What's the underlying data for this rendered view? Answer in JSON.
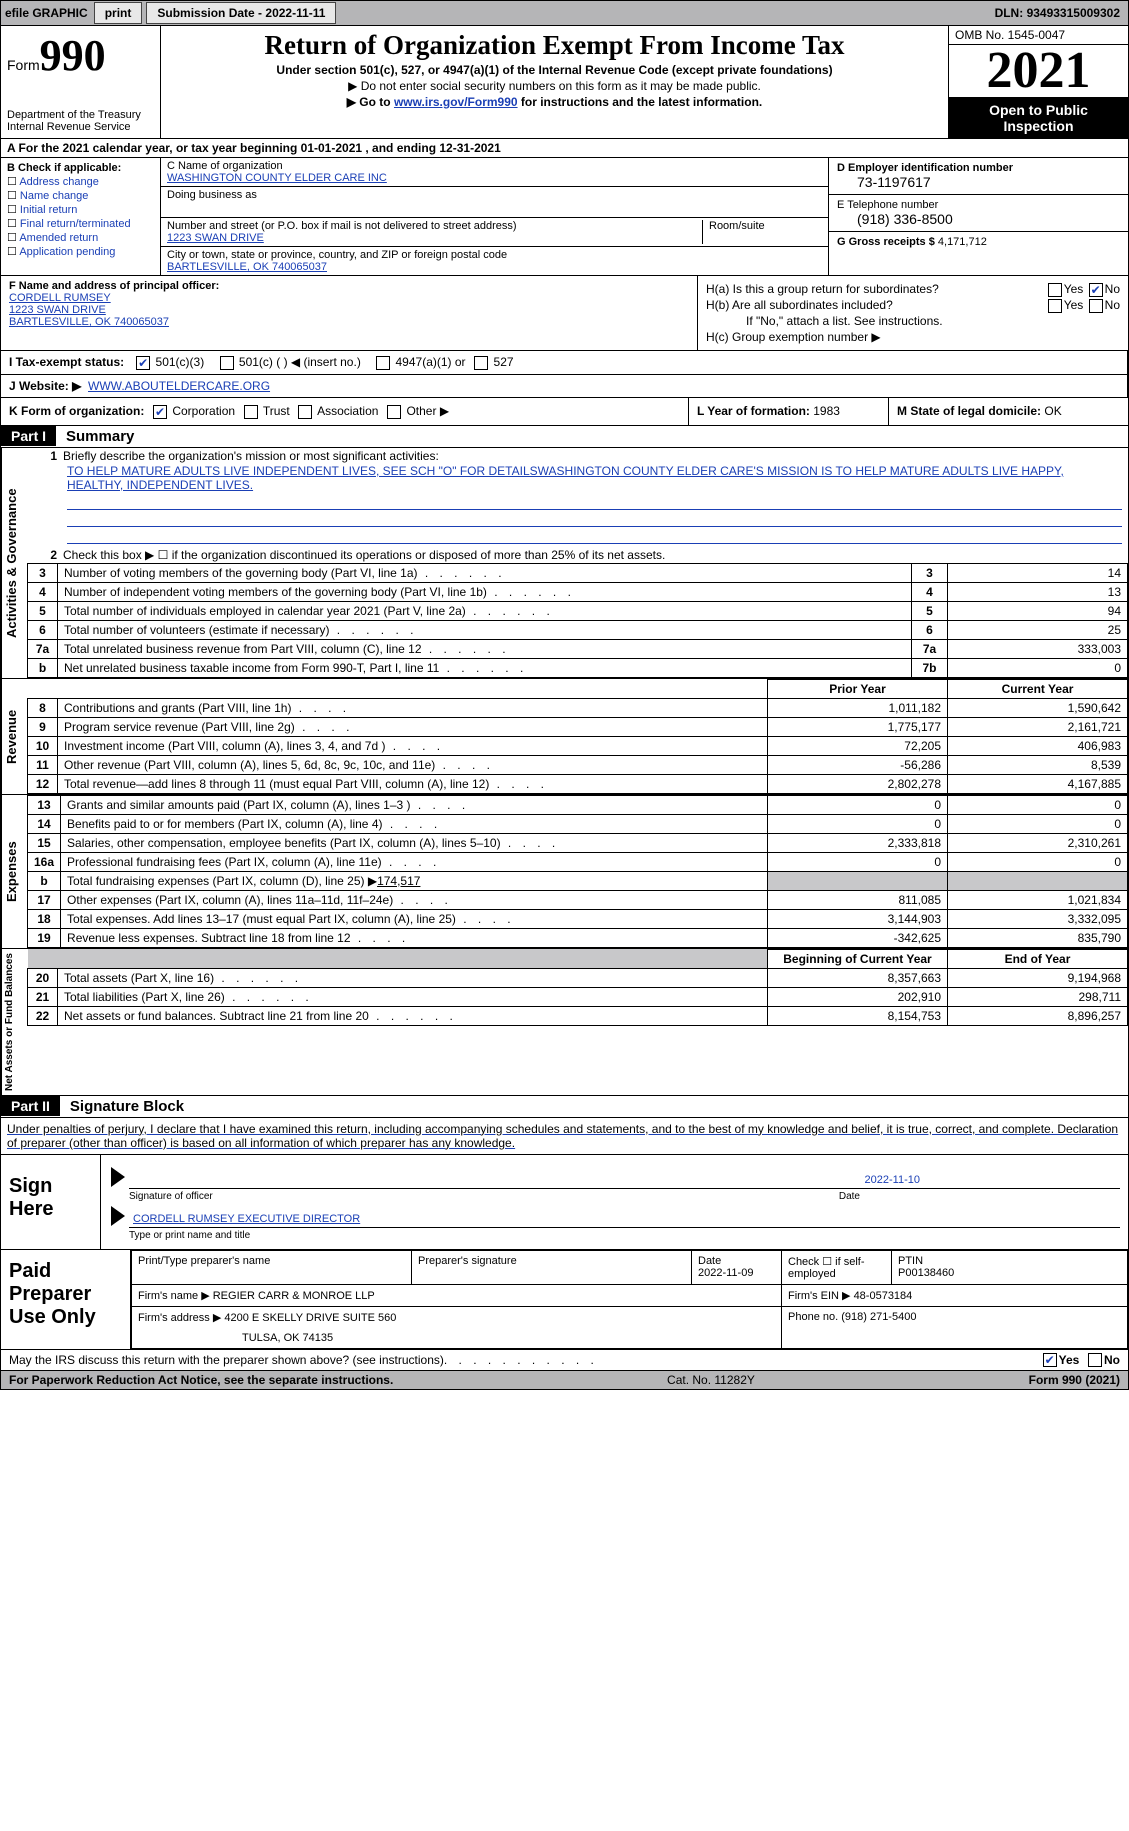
{
  "topbar": {
    "efile": "efile GRAPHIC",
    "print": "print",
    "sub_label": "Submission Date - ",
    "sub_date": "2022-11-11",
    "dln_label": "DLN: ",
    "dln": "93493315009302"
  },
  "header": {
    "form_word": "Form",
    "form_num": "990",
    "dept": "Department of the Treasury",
    "irs": "Internal Revenue Service",
    "title": "Return of Organization Exempt From Income Tax",
    "sub1": "Under section 501(c), 527, or 4947(a)(1) of the Internal Revenue Code (except private foundations)",
    "sub2": "▶ Do not enter social security numbers on this form as it may be made public.",
    "sub3_pre": "▶ Go to ",
    "sub3_link": "www.irs.gov/Form990",
    "sub3_post": " for instructions and the latest information.",
    "omb": "OMB No. 1545-0047",
    "year": "2021",
    "otp": "Open to Public Inspection"
  },
  "row_a": "A For the 2021 calendar year, or tax year beginning 01-01-2021    , and ending 12-31-2021",
  "section_b": {
    "label": "B Check if applicable:",
    "items": [
      "Address change",
      "Name change",
      "Initial return",
      "Final return/terminated",
      "Amended return",
      "Application pending"
    ]
  },
  "section_c": {
    "name_label": "C Name of organization",
    "name": "WASHINGTON COUNTY ELDER CARE INC",
    "dba_label": "Doing business as",
    "addr_label": "Number and street (or P.O. box if mail is not delivered to street address)",
    "room_label": "Room/suite",
    "addr": "1223 SWAN DRIVE",
    "city_label": "City or town, state or province, country, and ZIP or foreign postal code",
    "city": "BARTLESVILLE, OK  740065037"
  },
  "section_d": {
    "ein_label": "D Employer identification number",
    "ein": "73-1197617",
    "phone_label": "E Telephone number",
    "phone": "(918) 336-8500",
    "gross_label": "G Gross receipts $ ",
    "gross": "4,171,712"
  },
  "section_f": {
    "label": "F  Name and address of principal officer:",
    "name": "CORDELL RUMSEY",
    "addr1": "1223 SWAN DRIVE",
    "addr2": "BARTLESVILLE, OK  740065037"
  },
  "section_h": {
    "ha": "H(a)  Is this a group return for subordinates?",
    "hb": "H(b)  Are all subordinates included?",
    "hb_note": "If \"No,\" attach a list. See instructions.",
    "hc": "H(c)  Group exemption number ▶",
    "yes": "Yes",
    "no": "No"
  },
  "row_i": {
    "label": "I  Tax-exempt status:",
    "opt1": "501(c)(3)",
    "opt2": "501(c) (  ) ◀ (insert no.)",
    "opt3": "4947(a)(1) or",
    "opt4": "527"
  },
  "row_j": {
    "label": "J  Website: ▶",
    "val": "WWW.ABOUTELDERCARE.ORG"
  },
  "row_k": {
    "label": "K Form of organization:",
    "corp": "Corporation",
    "trust": "Trust",
    "assoc": "Association",
    "other": "Other ▶",
    "l_label": "L Year of formation: ",
    "l_val": "1983",
    "m_label": "M State of legal domicile: ",
    "m_val": "OK"
  },
  "parts": {
    "p1": "Part I",
    "p1_title": "Summary",
    "p2": "Part II",
    "p2_title": "Signature Block"
  },
  "vlabels": {
    "ag": "Activities & Governance",
    "rev": "Revenue",
    "exp": "Expenses",
    "net": "Net Assets or Fund Balances"
  },
  "summary1": {
    "l1": "Briefly describe the organization's mission or most significant activities:",
    "mission": "TO HELP MATURE ADULTS LIVE INDEPENDENT LIVES, SEE SCH \"O\" FOR DETAILSWASHINGTON COUNTY ELDER CARE'S MISSION IS TO HELP MATURE ADULTS LIVE HAPPY, HEALTHY, INDEPENDENT LIVES.",
    "l2": "Check this box ▶ ☐  if the organization discontinued its operations or disposed of more than 25% of its net assets."
  },
  "govrows": [
    {
      "n": "3",
      "d": "Number of voting members of the governing body (Part VI, line 1a)",
      "b": "3",
      "v": "14"
    },
    {
      "n": "4",
      "d": "Number of independent voting members of the governing body (Part VI, line 1b)",
      "b": "4",
      "v": "13"
    },
    {
      "n": "5",
      "d": "Total number of individuals employed in calendar year 2021 (Part V, line 2a)",
      "b": "5",
      "v": "94"
    },
    {
      "n": "6",
      "d": "Total number of volunteers (estimate if necessary)",
      "b": "6",
      "v": "25"
    },
    {
      "n": "7a",
      "d": "Total unrelated business revenue from Part VIII, column (C), line 12",
      "b": "7a",
      "v": "333,003"
    },
    {
      "n": "b",
      "d": "Net unrelated business taxable income from Form 990-T, Part I, line 11",
      "b": "7b",
      "v": "0"
    }
  ],
  "headers2": {
    "prior": "Prior Year",
    "current": "Current Year",
    "boy": "Beginning of Current Year",
    "eoy": "End of Year"
  },
  "revrows": [
    {
      "n": "8",
      "d": "Contributions and grants (Part VIII, line 1h)",
      "p": "1,011,182",
      "c": "1,590,642"
    },
    {
      "n": "9",
      "d": "Program service revenue (Part VIII, line 2g)",
      "p": "1,775,177",
      "c": "2,161,721"
    },
    {
      "n": "10",
      "d": "Investment income (Part VIII, column (A), lines 3, 4, and 7d )",
      "p": "72,205",
      "c": "406,983"
    },
    {
      "n": "11",
      "d": "Other revenue (Part VIII, column (A), lines 5, 6d, 8c, 9c, 10c, and 11e)",
      "p": "-56,286",
      "c": "8,539"
    },
    {
      "n": "12",
      "d": "Total revenue—add lines 8 through 11 (must equal Part VIII, column (A), line 12)",
      "p": "2,802,278",
      "c": "4,167,885"
    }
  ],
  "exprows": [
    {
      "n": "13",
      "d": "Grants and similar amounts paid (Part IX, column (A), lines 1–3 )",
      "p": "0",
      "c": "0"
    },
    {
      "n": "14",
      "d": "Benefits paid to or for members (Part IX, column (A), line 4)",
      "p": "0",
      "c": "0"
    },
    {
      "n": "15",
      "d": "Salaries, other compensation, employee benefits (Part IX, column (A), lines 5–10)",
      "p": "2,333,818",
      "c": "2,310,261"
    },
    {
      "n": "16a",
      "d": "Professional fundraising fees (Part IX, column (A), line 11e)",
      "p": "0",
      "c": "0"
    }
  ],
  "exp16b": {
    "n": "b",
    "d": "Total fundraising expenses (Part IX, column (D), line 25) ▶",
    "v": "174,517"
  },
  "exprows2": [
    {
      "n": "17",
      "d": "Other expenses (Part IX, column (A), lines 11a–11d, 11f–24e)",
      "p": "811,085",
      "c": "1,021,834"
    },
    {
      "n": "18",
      "d": "Total expenses. Add lines 13–17 (must equal Part IX, column (A), line 25)",
      "p": "3,144,903",
      "c": "3,332,095"
    },
    {
      "n": "19",
      "d": "Revenue less expenses. Subtract line 18 from line 12",
      "p": "-342,625",
      "c": "835,790"
    }
  ],
  "netrows": [
    {
      "n": "20",
      "d": "Total assets (Part X, line 16)",
      "p": "8,357,663",
      "c": "9,194,968"
    },
    {
      "n": "21",
      "d": "Total liabilities (Part X, line 26)",
      "p": "202,910",
      "c": "298,711"
    },
    {
      "n": "22",
      "d": "Net assets or fund balances. Subtract line 21 from line 20",
      "p": "8,154,753",
      "c": "8,896,257"
    }
  ],
  "sig": {
    "intro": "Under penalties of perjury, I declare that I have examined this return, including accompanying schedules and statements, and to the best of my knowledge and belief, it is true, correct, and complete. Declaration of preparer (other than officer) is based on all information of which preparer has any knowledge.",
    "sign_here": "Sign Here",
    "sig_officer": "Signature of officer",
    "date_lbl": "Date",
    "sig_date": "2022-11-10",
    "name_title": "CORDELL RUMSEY EXECUTIVE DIRECTOR",
    "type_name": "Type or print name and title"
  },
  "prep": {
    "title": "Paid Preparer Use Only",
    "h1": "Print/Type preparer's name",
    "h2": "Preparer's signature",
    "h3": "Date",
    "h3v": "2022-11-09",
    "h4": "Check ☐  if self-employed",
    "h5": "PTIN",
    "h5v": "P00138460",
    "firm_lbl": "Firm's name    ▶ ",
    "firm": "REGIER CARR & MONROE LLP",
    "ein_lbl": "Firm's EIN ▶ ",
    "ein": "48-0573184",
    "addr_lbl": "Firm's address ▶ ",
    "addr1": "4200 E SKELLY DRIVE SUITE 560",
    "addr2": "TULSA, OK  74135",
    "phone_lbl": "Phone no. ",
    "phone": "(918) 271-5400"
  },
  "footer": {
    "discuss": "May the IRS discuss this return with the preparer shown above? (see instructions)",
    "yes": "Yes",
    "no": "No",
    "paperwork": "For Paperwork Reduction Act Notice, see the separate instructions.",
    "cat": "Cat. No. 11282Y",
    "formref": "Form 990 (2021)"
  }
}
